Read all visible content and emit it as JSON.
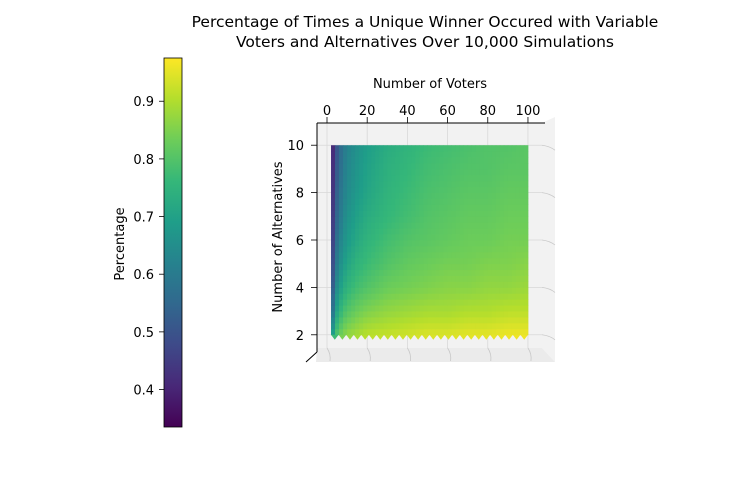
{
  "chart_data": {
    "type": "heatmap",
    "title_lines": [
      "Percentage of Times a Unique Winner Occured with Variable",
      "Voters and Alternatives Over 10,000 Simulations"
    ],
    "xlabel": "Number of Voters",
    "ylabel": "Number of Alternatives",
    "colorbar_label": "Percentage",
    "x_ticks": [
      "0",
      "20",
      "40",
      "60",
      "80",
      "100"
    ],
    "y_ticks": [
      "2",
      "4",
      "6",
      "8",
      "10"
    ],
    "colorbar_ticks": [
      "0.4",
      "0.5",
      "0.6",
      "0.7",
      "0.8",
      "0.9"
    ],
    "xlim": [
      0,
      104
    ],
    "ylim": [
      1.4,
      10.6
    ],
    "colorbar_range": [
      0.335,
      0.975
    ],
    "colormap": "viridis",
    "x_values": [
      2,
      4,
      6,
      8,
      10,
      15,
      20,
      30,
      40,
      50,
      60,
      70,
      80,
      90,
      100
    ],
    "y_values": [
      2,
      3,
      4,
      5,
      6,
      7,
      8,
      9,
      10
    ],
    "z": [
      [
        0.62,
        0.78,
        0.82,
        0.85,
        0.87,
        0.89,
        0.91,
        0.92,
        0.93,
        0.94,
        0.94,
        0.95,
        0.95,
        0.96,
        0.96
      ],
      [
        0.5,
        0.68,
        0.74,
        0.78,
        0.8,
        0.83,
        0.85,
        0.87,
        0.88,
        0.89,
        0.89,
        0.9,
        0.9,
        0.91,
        0.91
      ],
      [
        0.44,
        0.62,
        0.68,
        0.72,
        0.75,
        0.78,
        0.8,
        0.83,
        0.84,
        0.85,
        0.86,
        0.86,
        0.87,
        0.87,
        0.88
      ],
      [
        0.41,
        0.57,
        0.64,
        0.68,
        0.71,
        0.75,
        0.77,
        0.8,
        0.82,
        0.83,
        0.84,
        0.84,
        0.85,
        0.85,
        0.86
      ],
      [
        0.39,
        0.54,
        0.61,
        0.65,
        0.68,
        0.72,
        0.75,
        0.78,
        0.8,
        0.81,
        0.82,
        0.83,
        0.83,
        0.84,
        0.84
      ],
      [
        0.38,
        0.52,
        0.58,
        0.63,
        0.66,
        0.7,
        0.73,
        0.76,
        0.78,
        0.8,
        0.81,
        0.82,
        0.82,
        0.83,
        0.83
      ],
      [
        0.37,
        0.5,
        0.57,
        0.61,
        0.64,
        0.68,
        0.71,
        0.75,
        0.77,
        0.79,
        0.8,
        0.81,
        0.81,
        0.82,
        0.82
      ],
      [
        0.36,
        0.49,
        0.55,
        0.6,
        0.63,
        0.67,
        0.7,
        0.74,
        0.76,
        0.78,
        0.79,
        0.8,
        0.8,
        0.81,
        0.81
      ],
      [
        0.35,
        0.48,
        0.54,
        0.59,
        0.62,
        0.66,
        0.69,
        0.73,
        0.75,
        0.77,
        0.78,
        0.79,
        0.8,
        0.8,
        0.81
      ]
    ]
  }
}
